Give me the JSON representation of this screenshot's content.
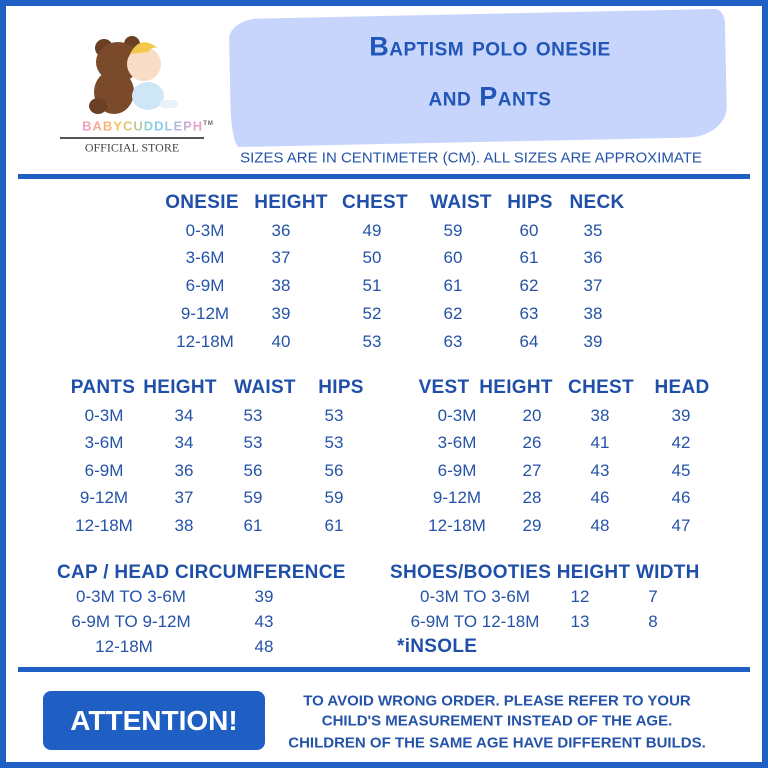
{
  "header": {
    "title_line1": "Baptism polo onesie",
    "title_line2": "and Pants",
    "subtitle": "SIZES ARE IN CENTIMETER (CM). ALL SIZES ARE APPROXIMATE"
  },
  "logo": {
    "brand": "BABYCUDDLEPH",
    "tm": "TM",
    "store": "OFFICIAL STORE"
  },
  "onesie": {
    "headers": [
      "ONESIE",
      "HEIGHT",
      "CHEST",
      "WAIST",
      "HIPS",
      "NECK"
    ],
    "rows": [
      [
        "0-3M",
        "36",
        "49",
        "59",
        "60",
        "35"
      ],
      [
        "3-6M",
        "37",
        "50",
        "60",
        "61",
        "36"
      ],
      [
        "6-9M",
        "38",
        "51",
        "61",
        "62",
        "37"
      ],
      [
        "9-12M",
        "39",
        "52",
        "62",
        "63",
        "38"
      ],
      [
        "12-18M",
        "40",
        "53",
        "63",
        "64",
        "39"
      ]
    ]
  },
  "pants": {
    "headers": [
      "PANTS",
      "HEIGHT",
      "WAIST",
      "HIPS"
    ],
    "rows": [
      [
        "0-3M",
        "34",
        "53",
        "53"
      ],
      [
        "3-6M",
        "34",
        "53",
        "53"
      ],
      [
        "6-9M",
        "36",
        "56",
        "56"
      ],
      [
        "9-12M",
        "37",
        "59",
        "59"
      ],
      [
        "12-18M",
        "38",
        "61",
        "61"
      ]
    ]
  },
  "vest": {
    "headers": [
      "VEST",
      "HEIGHT",
      "CHEST",
      "HEAD"
    ],
    "rows": [
      [
        "0-3M",
        "20",
        "38",
        "39"
      ],
      [
        "3-6M",
        "26",
        "41",
        "42"
      ],
      [
        "6-9M",
        "27",
        "43",
        "45"
      ],
      [
        "9-12M",
        "28",
        "46",
        "46"
      ],
      [
        "12-18M",
        "29",
        "48",
        "47"
      ]
    ]
  },
  "cap": {
    "header": "CAP / HEAD CIRCUMFERENCE",
    "rows": [
      [
        "0-3M TO 3-6M",
        "39"
      ],
      [
        "6-9M TO 9-12M",
        "43"
      ],
      [
        "12-18M",
        "48"
      ]
    ]
  },
  "shoes": {
    "header": "SHOES/BOOTIES HEIGHT  WIDTH",
    "rows": [
      [
        "0-3M TO 3-6M",
        "12",
        "7"
      ],
      [
        "6-9M TO 12-18M",
        "13",
        "8"
      ]
    ],
    "footnote": "*iNSOLE"
  },
  "attention": {
    "label": "ATTENTION!",
    "lines": [
      "TO AVOID WRONG ORDER. PLEASE REFER TO YOUR",
      "CHILD'S MEASUREMENT INSTEAD OF THE AGE.",
      "CHILDREN OF THE SAME AGE HAVE DIFFERENT BUILDS."
    ]
  },
  "colors": {
    "primary": "#1f5fc4",
    "text": "#2553a8",
    "banner": "#c7d4fb"
  }
}
